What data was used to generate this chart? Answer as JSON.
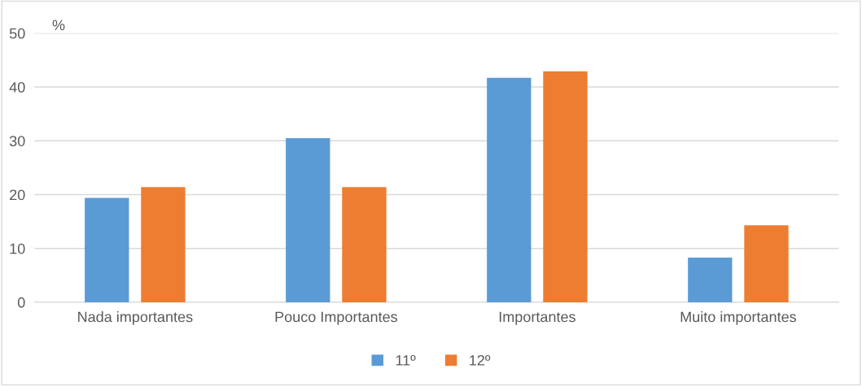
{
  "chart_data": {
    "type": "bar",
    "ylabel": "%",
    "categories": [
      "Nada importantes",
      "Pouco Importantes",
      "Importantes",
      "Muito importantes"
    ],
    "series": [
      {
        "name": "11º",
        "color": "#5b9bd5",
        "values": [
          19.4,
          30.5,
          41.7,
          8.3
        ]
      },
      {
        "name": "12º",
        "color": "#ed7d31",
        "values": [
          21.4,
          21.4,
          42.9,
          14.3
        ]
      }
    ],
    "ylim": [
      0,
      50
    ],
    "yticks": [
      0,
      10,
      20,
      30,
      40,
      50
    ],
    "grid": "y",
    "legend": "bottom"
  }
}
